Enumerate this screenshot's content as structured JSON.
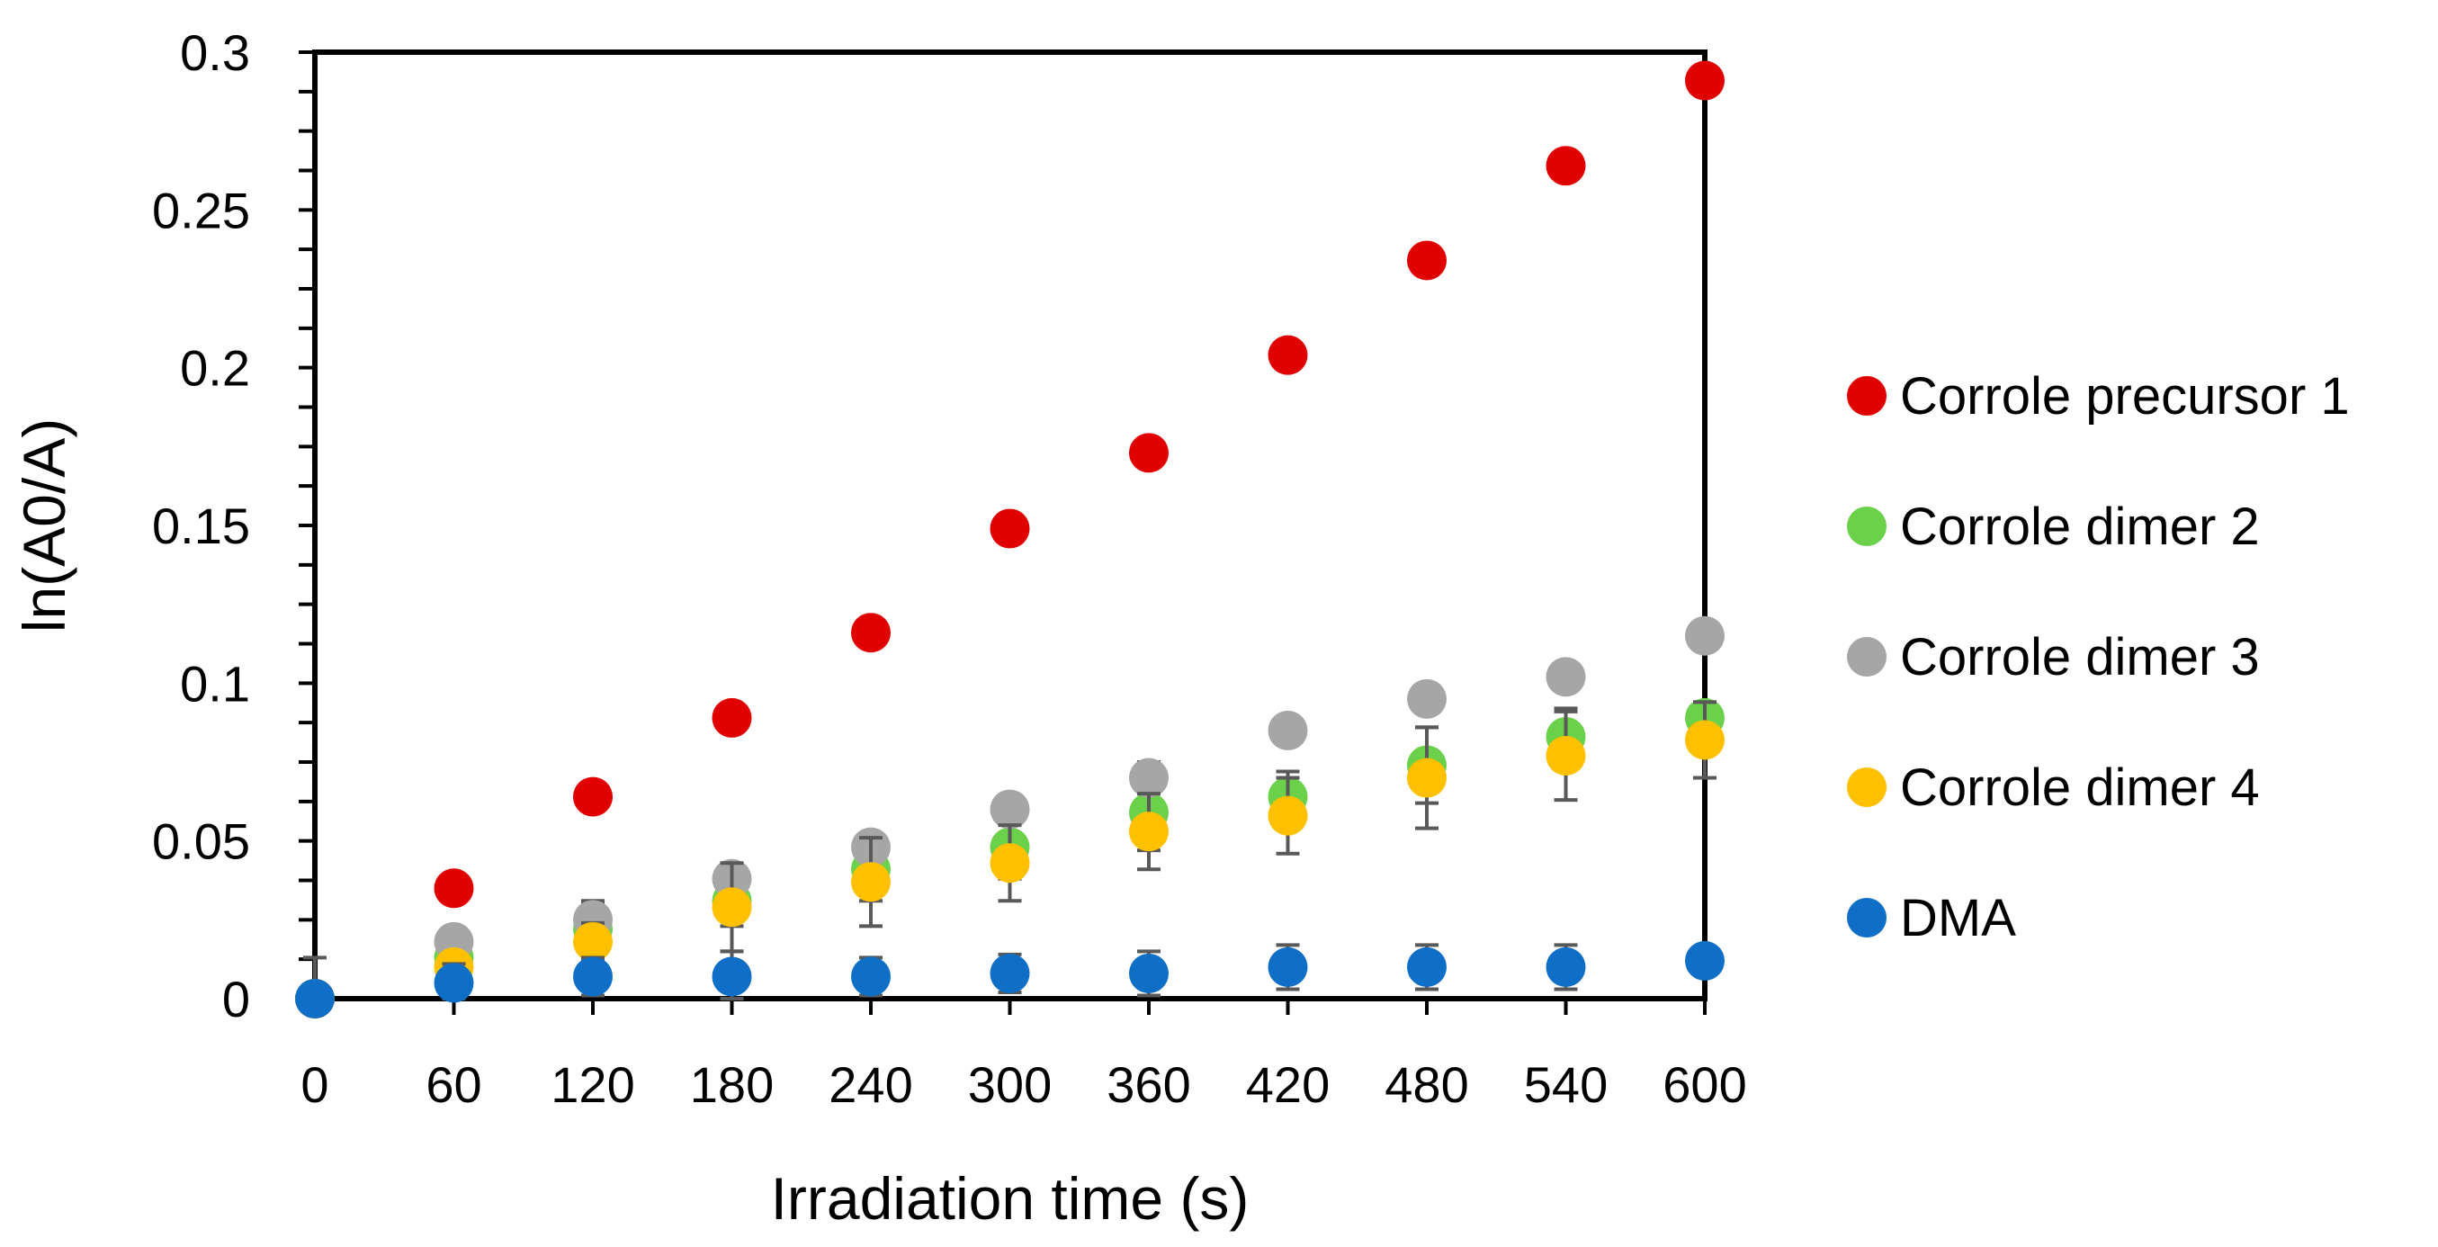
{
  "chart_data": {
    "type": "scatter",
    "title": "",
    "xlabel": "Irradiation time (s)",
    "ylabel": "ln(A0/A)",
    "x": [
      0,
      60,
      120,
      180,
      240,
      300,
      360,
      420,
      480,
      540,
      600
    ],
    "xticks": [
      "0",
      "60",
      "120",
      "180",
      "240",
      "300",
      "360",
      "420",
      "480",
      "540",
      "600"
    ],
    "xlim": [
      0,
      600
    ],
    "yticks": [
      {
        "value": 0,
        "label": "0"
      },
      {
        "value": 0.05,
        "label": "0.05"
      },
      {
        "value": 0.1,
        "label": "0.1"
      },
      {
        "value": 0.15,
        "label": "0.15"
      },
      {
        "value": 0.2,
        "label": "0.2"
      },
      {
        "value": 0.25,
        "label": "0.25"
      },
      {
        "value": 0.3,
        "label": "0.3"
      }
    ],
    "ylim": [
      0,
      0.3
    ],
    "grid": false,
    "legend_position": "right",
    "series": [
      {
        "name": "Corrole precursor 1",
        "color": "#e00000",
        "values": [
          0,
          0.035,
          0.064,
          0.089,
          0.116,
          0.149,
          0.173,
          0.204,
          0.234,
          0.264,
          0.291
        ],
        "errors": [
          0,
          0.002,
          0.003,
          0.002,
          0.002,
          0.002,
          0.002,
          0.002,
          0.002,
          0.002,
          0.002
        ]
      },
      {
        "name": "Corrole dimer 2",
        "color": "#6cd14a",
        "values": [
          0,
          0.013,
          0.022,
          0.031,
          0.041,
          0.048,
          0.059,
          0.064,
          0.074,
          0.083,
          0.089
        ],
        "errors": [
          0,
          0.006,
          0.008,
          0.008,
          0.01,
          0.01,
          0.012,
          0.008,
          0.012,
          0.009,
          0.005
        ]
      },
      {
        "name": "Corrole dimer 3",
        "color": "#a6a6a6",
        "values": [
          0,
          0.018,
          0.025,
          0.038,
          0.048,
          0.06,
          0.07,
          0.085,
          0.095,
          0.102,
          0.115
        ],
        "errors": [
          0,
          0.003,
          0.006,
          0.003,
          0.004,
          0.004,
          0.005,
          0.004,
          0.004,
          0.004,
          0.004
        ]
      },
      {
        "name": "Corrole dimer 4",
        "color": "#ffc000",
        "values": [
          0,
          0.01,
          0.018,
          0.029,
          0.037,
          0.043,
          0.053,
          0.058,
          0.07,
          0.077,
          0.082
        ],
        "errors": [
          0,
          0.004,
          0.006,
          0.014,
          0.014,
          0.012,
          0.012,
          0.012,
          0.016,
          0.014,
          0.012
        ]
      },
      {
        "name": "DMA",
        "color": "#0f6fc6",
        "values": [
          0,
          0.005,
          0.007,
          0.007,
          0.007,
          0.008,
          0.008,
          0.01,
          0.01,
          0.01,
          0.012
        ],
        "errors": [
          0.013,
          0.006,
          0.006,
          0.008,
          0.006,
          0.006,
          0.007,
          0.007,
          0.007,
          0.007,
          0.003
        ]
      }
    ]
  }
}
